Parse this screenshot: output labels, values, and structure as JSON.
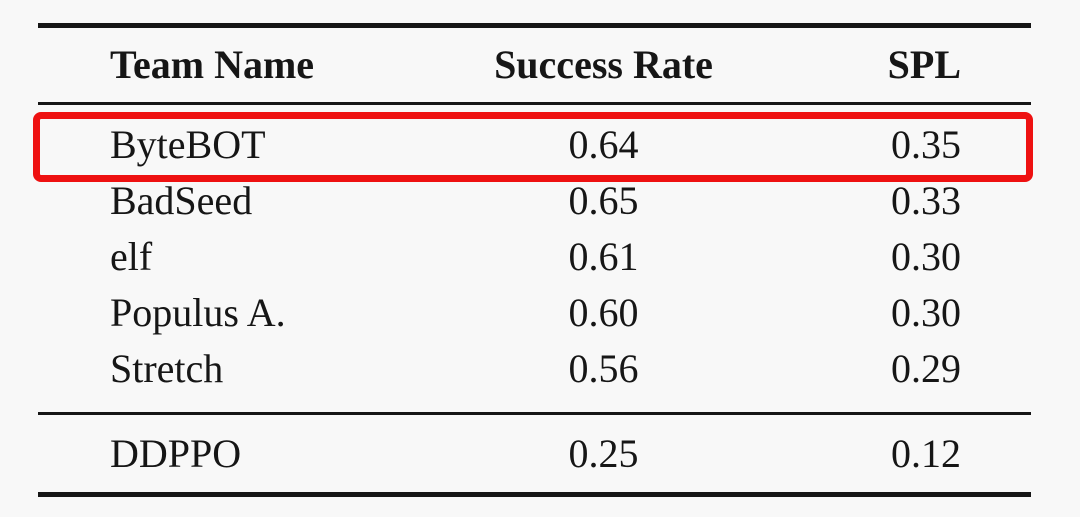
{
  "page": {
    "background_color": "#f8f8f8",
    "text_color": "#161616",
    "rule_color": "#161616"
  },
  "table": {
    "columns": [
      "Team Name",
      "Success Rate",
      "SPL"
    ],
    "rows": [
      {
        "team": "ByteBOT",
        "success_rate": "0.64",
        "spl": "0.35",
        "highlighted": true
      },
      {
        "team": "BadSeed",
        "success_rate": "0.65",
        "spl": "0.33",
        "highlighted": false
      },
      {
        "team": "elf",
        "success_rate": "0.61",
        "spl": "0.30",
        "highlighted": false
      },
      {
        "team": "Populus A.",
        "success_rate": "0.60",
        "spl": "0.30",
        "highlighted": false
      },
      {
        "team": "Stretch",
        "success_rate": "0.56",
        "spl": "0.29",
        "highlighted": false
      }
    ],
    "baseline_rows": [
      {
        "team": "DDPPO",
        "success_rate": "0.25",
        "spl": "0.12"
      }
    ],
    "highlight": {
      "row": "ByteBOT",
      "color": "#ee1111"
    }
  },
  "chart_data": {
    "type": "table",
    "title": "",
    "columns": [
      "Team Name",
      "Success Rate",
      "SPL"
    ],
    "series": [
      {
        "name": "ByteBOT",
        "values": [
          0.64,
          0.35
        ]
      },
      {
        "name": "BadSeed",
        "values": [
          0.65,
          0.33
        ]
      },
      {
        "name": "elf",
        "values": [
          0.61,
          0.3
        ]
      },
      {
        "name": "Populus A.",
        "values": [
          0.6,
          0.3
        ]
      },
      {
        "name": "Stretch",
        "values": [
          0.56,
          0.29
        ]
      },
      {
        "name": "DDPPO",
        "values": [
          0.25,
          0.12
        ]
      }
    ]
  }
}
